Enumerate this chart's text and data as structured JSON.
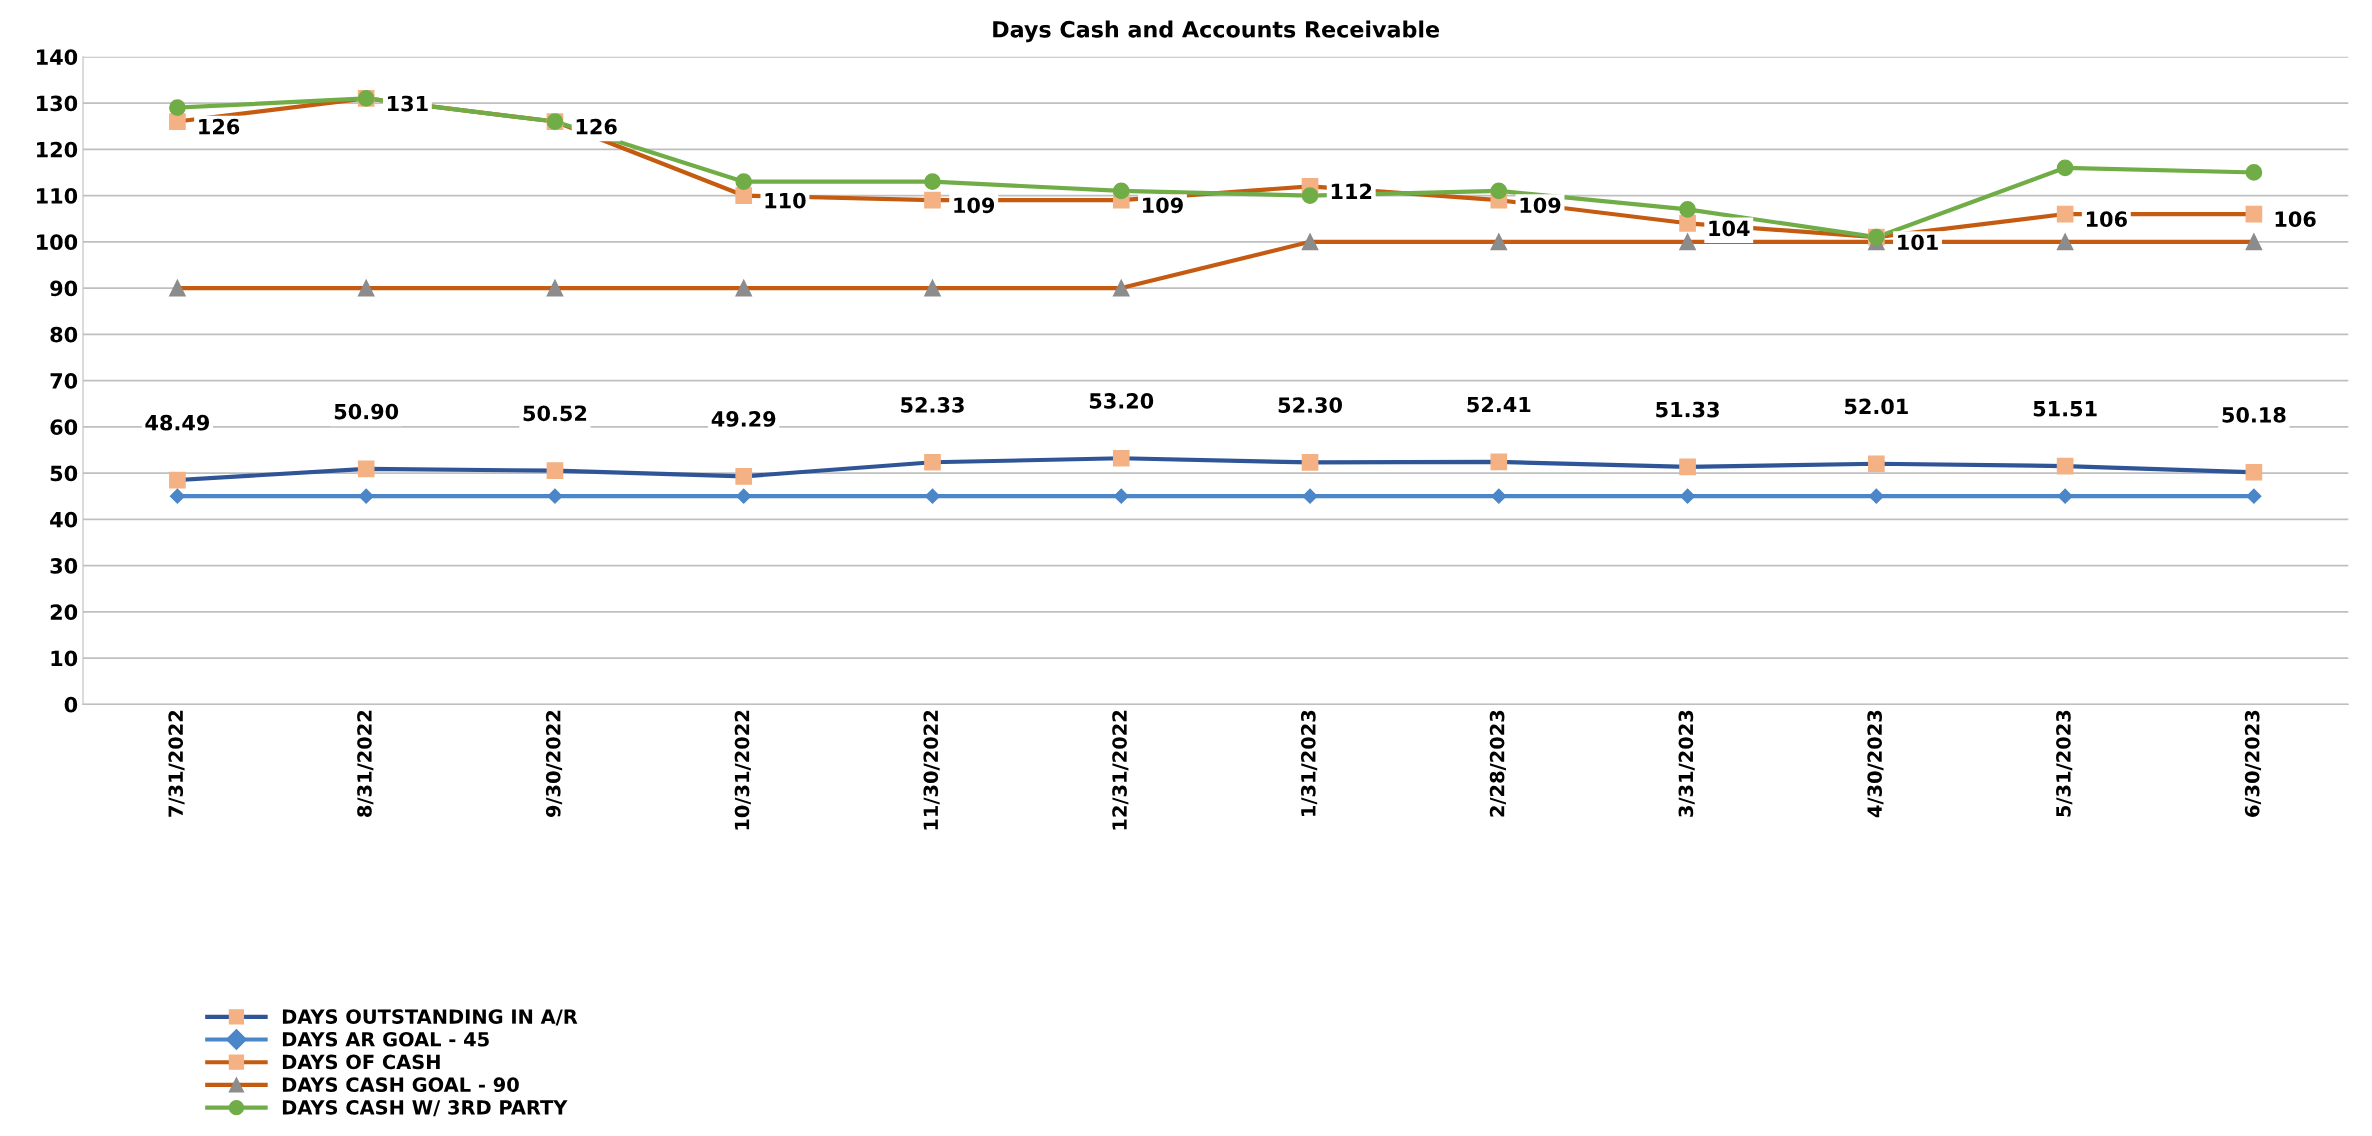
{
  "chart_data": {
    "type": "line",
    "title": "Days Cash and Accounts Receivable",
    "categories": [
      "7/31/2022",
      "8/31/2022",
      "9/30/2022",
      "10/31/2022",
      "11/30/2022",
      "12/31/2022",
      "1/31/2023",
      "2/28/2023",
      "3/31/2023",
      "4/30/2023",
      "5/31/2023",
      "6/30/2023"
    ],
    "series": [
      {
        "name": "DAYS OUTSTANDING IN A/R",
        "color": "#2f5597",
        "colors": [
          "#f4b183",
          "#f4b183",
          "#f4b183",
          "#f4b183",
          "#f4b183",
          "#f4b183",
          "#f4b183",
          "#f4b183",
          "#f4b183",
          "#f4b183",
          "#f4b183",
          "#f4b183"
        ],
        "marker": "square",
        "values": [
          48.49,
          50.9,
          50.52,
          49.29,
          52.33,
          53.2,
          52.3,
          52.41,
          51.33,
          52.01,
          51.51,
          50.18
        ],
        "value_labels": [
          "48.49",
          "50.90",
          "50.52",
          "49.29",
          "52.33",
          "53.20",
          "52.30",
          "52.41",
          "51.33",
          "52.01",
          "51.51",
          "50.18"
        ]
      },
      {
        "name": "DAYS AR GOAL - 45",
        "color": "#4a86c8",
        "marker": "diamond",
        "values": [
          45,
          45,
          45,
          45,
          45,
          45,
          45,
          45,
          45,
          45,
          45,
          45
        ]
      },
      {
        "name": "DAYS OF CASH",
        "color": "#c55a11",
        "colors": [
          "#f4b183",
          "#f4b183",
          "#f4b183",
          "#f4b183",
          "#f4b183",
          "#f4b183",
          "#f4b183",
          "#f4b183",
          "#f4b183",
          "#f4b183",
          "#f4b183",
          "#f4b183"
        ],
        "marker": "square",
        "values": [
          126,
          131,
          126,
          110,
          109,
          109,
          112,
          109,
          104,
          101,
          106,
          106
        ],
        "value_labels": [
          "126",
          "131",
          "126",
          "110",
          "109",
          "109",
          "112",
          "109",
          "104",
          "101",
          "106",
          "106"
        ]
      },
      {
        "name": "DAYS CASH GOAL - 90",
        "color": "#c55a11",
        "colors": [
          "#8c8c8c",
          "#8c8c8c",
          "#8c8c8c",
          "#8c8c8c",
          "#8c8c8c",
          "#8c8c8c",
          "#8c8c8c",
          "#8c8c8c",
          "#8c8c8c",
          "#8c8c8c",
          "#8c8c8c",
          "#8c8c8c"
        ],
        "marker": "triangle",
        "values": [
          90,
          90,
          90,
          90,
          90,
          90,
          100,
          100,
          100,
          100,
          100,
          100
        ]
      },
      {
        "name": "DAYS CASH W/ 3RD PARTY",
        "color": "#70ad47",
        "colors": [
          "#70ad47",
          "#70ad47",
          "#70ad47",
          "#70ad47",
          "#70ad47",
          "#70ad47",
          "#70ad47",
          "#70ad47",
          "#70ad47",
          "#70ad47",
          "#70ad47",
          "#70ad47"
        ],
        "marker": "circle",
        "values": [
          129,
          131,
          126,
          113,
          113,
          111,
          110,
          111,
          107,
          101,
          116,
          115
        ]
      }
    ],
    "ylim": [
      0,
      140
    ],
    "yticks": [
      0,
      10,
      20,
      30,
      40,
      50,
      60,
      70,
      80,
      90,
      100,
      110,
      120,
      130,
      140
    ],
    "grid": "y",
    "legend": "bottom left"
  }
}
